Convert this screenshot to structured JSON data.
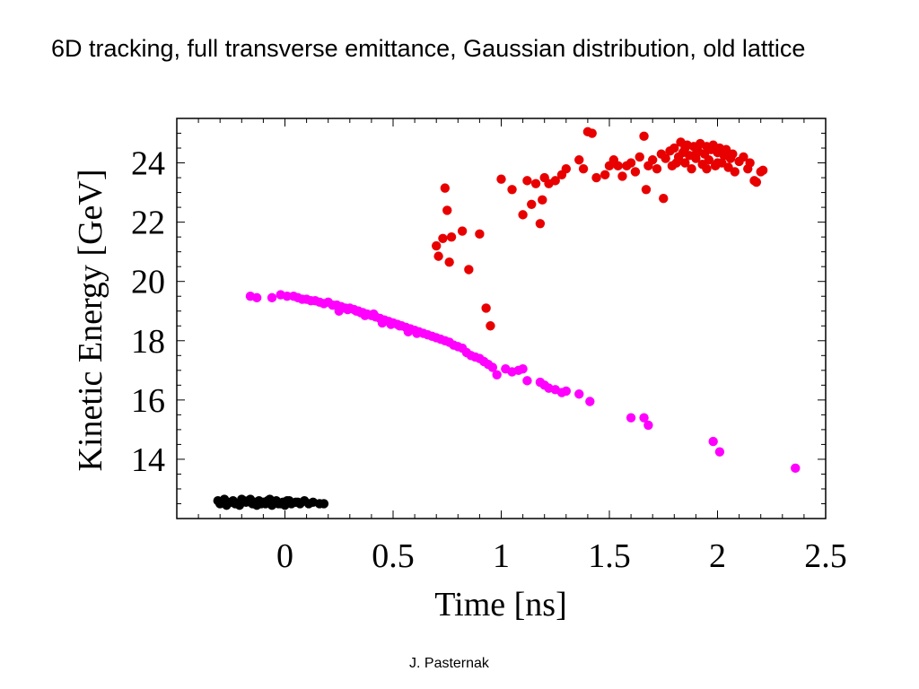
{
  "slide": {
    "title": "6D tracking, full transverse emittance, Gaussian distribution, old lattice",
    "footer": "J. Pasternak"
  },
  "chart_data": {
    "type": "scatter",
    "xlabel": "Time [ns]",
    "ylabel": "Kinetic Energy [GeV]",
    "xlim": [
      -0.5,
      2.5
    ],
    "ylim": [
      12.0,
      25.5
    ],
    "x_ticks": [
      0,
      0.5,
      1,
      1.5,
      2,
      2.5
    ],
    "x_tick_labels": [
      "0",
      "0.5",
      "1",
      "1.5",
      "2",
      "2.5"
    ],
    "y_ticks": [
      14,
      16,
      18,
      20,
      22,
      24
    ],
    "y_tick_labels": [
      "14",
      "16",
      "18",
      "20",
      "22",
      "24"
    ],
    "grid": false,
    "series": [
      {
        "color": "#000000",
        "points": [
          [
            -0.31,
            12.6
          ],
          [
            -0.3,
            12.5
          ],
          [
            -0.28,
            12.65
          ],
          [
            -0.27,
            12.45
          ],
          [
            -0.25,
            12.55
          ],
          [
            -0.24,
            12.6
          ],
          [
            -0.22,
            12.5
          ],
          [
            -0.21,
            12.45
          ],
          [
            -0.19,
            12.6
          ],
          [
            -0.18,
            12.55
          ],
          [
            -0.16,
            12.65
          ],
          [
            -0.15,
            12.5
          ],
          [
            -0.13,
            12.45
          ],
          [
            -0.12,
            12.6
          ],
          [
            -0.1,
            12.55
          ],
          [
            -0.09,
            12.5
          ],
          [
            -0.07,
            12.65
          ],
          [
            -0.06,
            12.45
          ],
          [
            -0.04,
            12.6
          ],
          [
            -0.03,
            12.5
          ],
          [
            -0.01,
            12.55
          ],
          [
            0.0,
            12.45
          ],
          [
            0.02,
            12.6
          ],
          [
            0.03,
            12.5
          ],
          [
            0.05,
            12.55
          ],
          [
            0.07,
            12.5
          ],
          [
            0.09,
            12.6
          ],
          [
            0.11,
            12.5
          ],
          [
            0.13,
            12.55
          ],
          [
            0.16,
            12.5
          ],
          [
            0.18,
            12.5
          ],
          [
            -0.29,
            12.55
          ],
          [
            -0.23,
            12.5
          ],
          [
            -0.17,
            12.6
          ],
          [
            -0.11,
            12.5
          ],
          [
            -0.05,
            12.55
          ],
          [
            0.01,
            12.6
          ],
          [
            0.06,
            12.55
          ],
          [
            -0.2,
            12.65
          ],
          [
            -0.14,
            12.55
          ],
          [
            -0.08,
            12.6
          ],
          [
            -0.02,
            12.5
          ]
        ]
      },
      {
        "color": "#ff00ff",
        "points": [
          [
            -0.16,
            19.5
          ],
          [
            -0.13,
            19.45
          ],
          [
            -0.06,
            19.45
          ],
          [
            -0.02,
            19.55
          ],
          [
            0.01,
            19.5
          ],
          [
            0.04,
            19.5
          ],
          [
            0.06,
            19.45
          ],
          [
            0.08,
            19.4
          ],
          [
            0.1,
            19.4
          ],
          [
            0.12,
            19.35
          ],
          [
            0.14,
            19.35
          ],
          [
            0.16,
            19.3
          ],
          [
            0.18,
            19.25
          ],
          [
            0.2,
            19.3
          ],
          [
            0.22,
            19.2
          ],
          [
            0.24,
            19.2
          ],
          [
            0.26,
            19.15
          ],
          [
            0.28,
            19.1
          ],
          [
            0.3,
            19.1
          ],
          [
            0.32,
            19.05
          ],
          [
            0.34,
            19.0
          ],
          [
            0.36,
            18.95
          ],
          [
            0.38,
            18.9
          ],
          [
            0.4,
            18.85
          ],
          [
            0.42,
            18.8
          ],
          [
            0.44,
            18.75
          ],
          [
            0.46,
            18.7
          ],
          [
            0.48,
            18.65
          ],
          [
            0.5,
            18.6
          ],
          [
            0.52,
            18.55
          ],
          [
            0.54,
            18.5
          ],
          [
            0.56,
            18.45
          ],
          [
            0.58,
            18.4
          ],
          [
            0.6,
            18.35
          ],
          [
            0.62,
            18.3
          ],
          [
            0.64,
            18.25
          ],
          [
            0.66,
            18.2
          ],
          [
            0.68,
            18.15
          ],
          [
            0.7,
            18.1
          ],
          [
            0.72,
            18.05
          ],
          [
            0.74,
            18.0
          ],
          [
            0.76,
            17.95
          ],
          [
            0.78,
            17.85
          ],
          [
            0.8,
            17.8
          ],
          [
            0.82,
            17.75
          ],
          [
            0.84,
            17.6
          ],
          [
            0.86,
            17.5
          ],
          [
            0.88,
            17.45
          ],
          [
            0.9,
            17.4
          ],
          [
            0.92,
            17.3
          ],
          [
            0.94,
            17.2
          ],
          [
            0.96,
            17.1
          ],
          [
            0.98,
            16.85
          ],
          [
            1.02,
            17.05
          ],
          [
            1.05,
            16.95
          ],
          [
            1.08,
            17.0
          ],
          [
            1.1,
            17.05
          ],
          [
            1.12,
            16.65
          ],
          [
            1.18,
            16.6
          ],
          [
            1.2,
            16.5
          ],
          [
            1.22,
            16.4
          ],
          [
            1.25,
            16.35
          ],
          [
            1.28,
            16.25
          ],
          [
            1.3,
            16.3
          ],
          [
            1.36,
            16.2
          ],
          [
            1.41,
            15.95
          ],
          [
            1.6,
            15.4
          ],
          [
            1.66,
            15.4
          ],
          [
            1.68,
            15.15
          ],
          [
            1.98,
            14.6
          ],
          [
            2.01,
            14.25
          ],
          [
            2.36,
            13.7
          ],
          [
            0.33,
            19.0
          ],
          [
            0.37,
            18.85
          ],
          [
            0.41,
            18.9
          ],
          [
            0.45,
            18.6
          ],
          [
            0.49,
            18.55
          ],
          [
            0.53,
            18.5
          ],
          [
            0.57,
            18.3
          ],
          [
            0.61,
            18.25
          ],
          [
            0.25,
            19.0
          ],
          [
            0.29,
            19.05
          ],
          [
            0.35,
            18.95
          ]
        ]
      },
      {
        "color": "#e80000",
        "points": [
          [
            0.7,
            21.2
          ],
          [
            0.71,
            20.85
          ],
          [
            0.73,
            21.45
          ],
          [
            0.74,
            23.15
          ],
          [
            0.75,
            22.4
          ],
          [
            0.76,
            20.65
          ],
          [
            0.77,
            21.5
          ],
          [
            0.82,
            21.7
          ],
          [
            0.85,
            20.4
          ],
          [
            0.9,
            21.6
          ],
          [
            0.93,
            19.1
          ],
          [
            0.95,
            18.5
          ],
          [
            1.0,
            23.45
          ],
          [
            1.05,
            23.1
          ],
          [
            1.1,
            22.25
          ],
          [
            1.12,
            23.4
          ],
          [
            1.14,
            22.6
          ],
          [
            1.16,
            23.3
          ],
          [
            1.18,
            21.95
          ],
          [
            1.19,
            22.75
          ],
          [
            1.2,
            23.5
          ],
          [
            1.22,
            23.3
          ],
          [
            1.25,
            23.4
          ],
          [
            1.28,
            23.6
          ],
          [
            1.3,
            23.8
          ],
          [
            1.36,
            24.1
          ],
          [
            1.38,
            23.8
          ],
          [
            1.4,
            25.05
          ],
          [
            1.42,
            25.0
          ],
          [
            1.44,
            23.5
          ],
          [
            1.48,
            23.6
          ],
          [
            1.5,
            23.9
          ],
          [
            1.52,
            24.1
          ],
          [
            1.54,
            23.9
          ],
          [
            1.56,
            23.55
          ],
          [
            1.58,
            23.9
          ],
          [
            1.6,
            24.0
          ],
          [
            1.62,
            23.7
          ],
          [
            1.64,
            24.2
          ],
          [
            1.66,
            24.9
          ],
          [
            1.67,
            23.1
          ],
          [
            1.68,
            23.9
          ],
          [
            1.7,
            24.1
          ],
          [
            1.72,
            23.8
          ],
          [
            1.74,
            24.3
          ],
          [
            1.75,
            22.8
          ],
          [
            1.76,
            24.15
          ],
          [
            1.78,
            24.4
          ],
          [
            1.79,
            23.9
          ],
          [
            1.8,
            24.5
          ],
          [
            1.82,
            24.2
          ],
          [
            1.83,
            24.7
          ],
          [
            1.84,
            24.35
          ],
          [
            1.85,
            24.0
          ],
          [
            1.86,
            24.6
          ],
          [
            1.87,
            24.25
          ],
          [
            1.88,
            23.8
          ],
          [
            1.89,
            24.55
          ],
          [
            1.9,
            24.15
          ],
          [
            1.91,
            24.4
          ],
          [
            1.92,
            24.65
          ],
          [
            1.93,
            23.95
          ],
          [
            1.94,
            24.3
          ],
          [
            1.95,
            24.55
          ],
          [
            1.96,
            24.1
          ],
          [
            1.97,
            24.45
          ],
          [
            1.98,
            24.6
          ],
          [
            1.99,
            23.9
          ],
          [
            2.0,
            24.35
          ],
          [
            2.01,
            24.5
          ],
          [
            2.02,
            24.0
          ],
          [
            2.03,
            24.25
          ],
          [
            2.04,
            24.45
          ],
          [
            2.05,
            23.85
          ],
          [
            2.06,
            24.15
          ],
          [
            2.07,
            24.3
          ],
          [
            2.08,
            23.7
          ],
          [
            2.1,
            24.05
          ],
          [
            2.12,
            24.2
          ],
          [
            2.14,
            23.8
          ],
          [
            2.15,
            24.0
          ],
          [
            2.17,
            23.4
          ],
          [
            2.18,
            23.35
          ],
          [
            2.2,
            23.7
          ],
          [
            2.21,
            23.75
          ],
          [
            1.81,
            24.0
          ],
          [
            1.9,
            24.3
          ],
          [
            2.0,
            24.0
          ],
          [
            1.95,
            23.8
          ],
          [
            1.85,
            24.5
          ]
        ]
      }
    ]
  }
}
